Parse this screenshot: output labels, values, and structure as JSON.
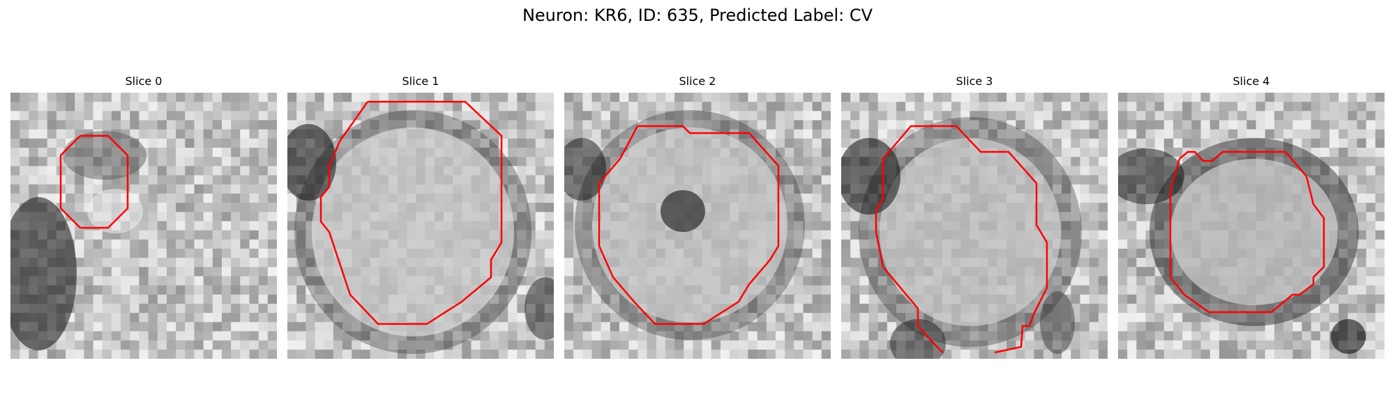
{
  "figure": {
    "title": "Neuron: KR6, ID: 635, Predicted Label: CV"
  },
  "colors": {
    "contour": "#ff0000",
    "colormap": "gray"
  },
  "panels": [
    {
      "title": "Slice 0"
    },
    {
      "title": "Slice 1"
    },
    {
      "title": "Slice 2"
    },
    {
      "title": "Slice 3"
    },
    {
      "title": "Slice 4"
    }
  ]
}
